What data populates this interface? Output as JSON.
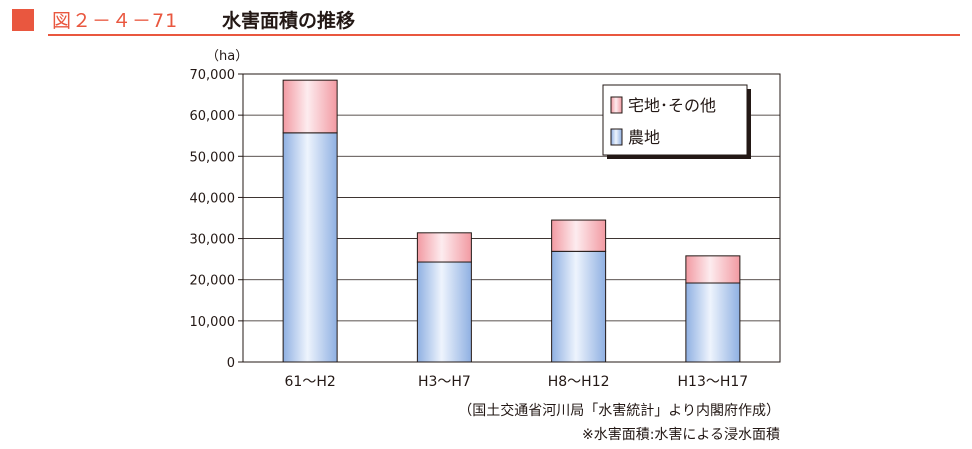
{
  "header": {
    "figure_number": "図２－４－71",
    "title": "水害面積の推移"
  },
  "colors": {
    "accent": "#e9573f",
    "farmland_bar": "#a9c3ea",
    "residential_bar": "#f6b8bd"
  },
  "chart_data": {
    "type": "bar",
    "stacked": true,
    "title": "水害面積の推移",
    "unit": "（ha）",
    "categories": [
      "61～H2",
      "H3～H7",
      "H8～H12",
      "H13～H17"
    ],
    "series": [
      {
        "name": "農地",
        "values": [
          55700,
          24300,
          26900,
          19200
        ]
      },
      {
        "name": "宅地･その他",
        "values": [
          12800,
          7100,
          7600,
          6600
        ]
      }
    ],
    "ylim": [
      0,
      70000
    ],
    "yticks": [
      "0",
      "10,000",
      "20,000",
      "30,000",
      "40,000",
      "50,000",
      "60,000",
      "70,000"
    ],
    "grid": true,
    "legend_position": "top-right"
  },
  "footer": {
    "source": "（国土交通省河川局「水害統計」より内閣府作成）",
    "note": "※水害面積:水害による浸水面積"
  }
}
